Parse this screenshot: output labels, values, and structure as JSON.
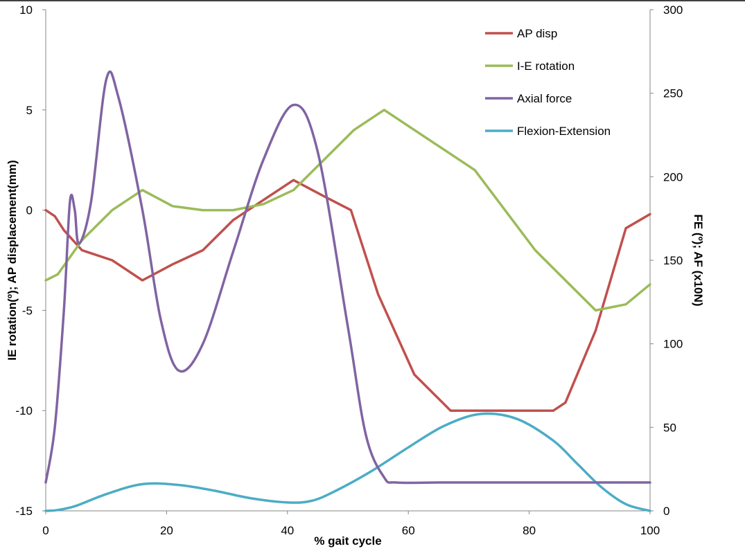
{
  "chart_data": {
    "type": "line",
    "xlabel": "% gait cycle",
    "ylabel_left": "IE rotation(º); AP displacement(mm)",
    "ylabel_right": "FE (º); AF (x10N)",
    "xlim": [
      0,
      100
    ],
    "ylim_left": [
      -15,
      10
    ],
    "ylim_right": [
      0,
      300
    ],
    "x_ticks": [
      "0",
      "20",
      "40",
      "60",
      "80",
      "100"
    ],
    "y_left_ticks": [
      "-15",
      "-10",
      "-5",
      "0",
      "5",
      "10"
    ],
    "y_right_ticks": [
      "0",
      "50",
      "100",
      "150",
      "200",
      "250",
      "300"
    ],
    "grid": false,
    "legend_position": "top-right",
    "series": [
      {
        "name": "AP disp",
        "axis": "left",
        "color": "#C0504D",
        "smooth": false,
        "x": [
          0,
          1.5,
          3,
          6,
          11,
          16,
          21,
          26,
          31,
          36,
          41,
          46,
          50.5,
          55,
          61,
          67,
          68,
          75,
          80,
          84,
          86,
          91,
          96,
          100
        ],
        "y": [
          0,
          -0.3,
          -1,
          -2,
          -2.5,
          -3.5,
          -2.7,
          -2,
          -0.5,
          0.5,
          1.5,
          0.7,
          0,
          -4.2,
          -8.2,
          -10,
          -10,
          -10,
          -10,
          -10,
          -9.6,
          -6,
          -0.9,
          -0.2
        ]
      },
      {
        "name": "I-E rotation",
        "axis": "left",
        "color": "#9BBB59",
        "smooth": false,
        "x": [
          0,
          2,
          6,
          11,
          16,
          21,
          26,
          31,
          36,
          41,
          46,
          51,
          56,
          61,
          66,
          71,
          76,
          81,
          86,
          91,
          96,
          100
        ],
        "y": [
          -3.5,
          -3.2,
          -1.5,
          0,
          1,
          0.2,
          0,
          0,
          0.3,
          1,
          2.5,
          4,
          5,
          4,
          3,
          2,
          0,
          -2,
          -3.5,
          -5,
          -4.7,
          -3.7
        ]
      },
      {
        "name": "Axial force",
        "axis": "right",
        "color": "#8064A2",
        "smooth": true,
        "x": [
          0,
          1.5,
          3,
          4,
          4.8,
          5.5,
          7.5,
          10,
          12,
          16,
          19,
          22,
          26,
          31,
          36,
          41,
          45,
          50,
          53,
          56,
          58,
          65,
          70,
          80,
          90,
          100
        ],
        "y": [
          17,
          50,
          120,
          185,
          180,
          160,
          185,
          258,
          248,
          180,
          115,
          84,
          100,
          155,
          210,
          243,
          215,
          110,
          45,
          20,
          17,
          17,
          17,
          17,
          17,
          17
        ]
      },
      {
        "name": "Flexion-Extension",
        "axis": "right",
        "color": "#4BACC6",
        "smooth": true,
        "x": [
          0,
          2,
          5,
          10,
          16,
          22,
          28,
          34,
          40,
          44,
          48,
          54,
          60,
          66,
          72,
          78,
          84,
          88,
          92,
          96,
          100
        ],
        "y": [
          0,
          0.5,
          3,
          10,
          16,
          15.5,
          12,
          7.5,
          5,
          6,
          12,
          24,
          38,
          51,
          58,
          55,
          42,
          28,
          14,
          4,
          0
        ]
      }
    ]
  }
}
